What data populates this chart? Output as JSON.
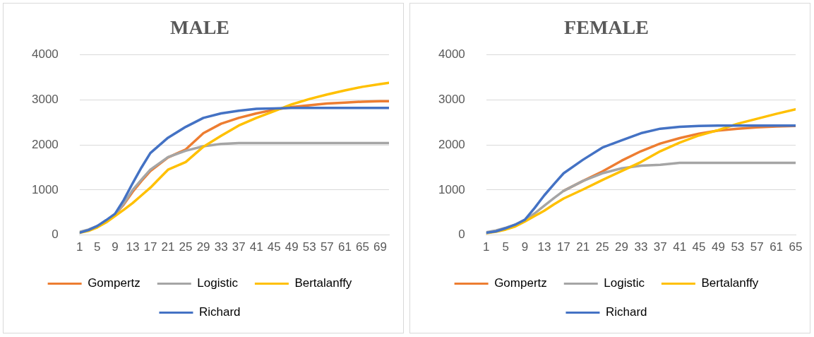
{
  "chart_data": [
    {
      "type": "line",
      "title": "MALE",
      "x": [
        1,
        3,
        5,
        7,
        9,
        11,
        13,
        15,
        17,
        21,
        25,
        29,
        33,
        37,
        41,
        45,
        49,
        53,
        57,
        61,
        65,
        69,
        71
      ],
      "xlim": [
        1,
        71
      ],
      "xticks": [
        1,
        5,
        9,
        13,
        17,
        21,
        25,
        29,
        33,
        37,
        41,
        45,
        49,
        53,
        57,
        61,
        65,
        69
      ],
      "ylim": [
        0,
        4000
      ],
      "yticks": [
        0,
        1000,
        2000,
        3000,
        4000
      ],
      "grid": "y",
      "legend": "bottom",
      "marker": "none",
      "series": [
        {
          "name": "Gompertz",
          "color": "#ed7d31",
          "values": [
            null,
            null,
            null,
            300,
            450,
            680,
            960,
            1200,
            1420,
            1720,
            1900,
            2260,
            2470,
            2600,
            2700,
            2780,
            2840,
            2880,
            2920,
            2940,
            2960,
            2970,
            2970
          ]
        },
        {
          "name": "Logistic",
          "color": "#a5a5a5",
          "values": [
            70,
            120,
            200,
            310,
            450,
            700,
            1000,
            1230,
            1450,
            1730,
            1870,
            1970,
            2020,
            2040,
            2040,
            2040,
            2040,
            2040,
            2040,
            2040,
            2040,
            2040,
            2040
          ]
        },
        {
          "name": "Bertalanffy",
          "color": "#ffc000",
          "values": [
            50,
            90,
            170,
            280,
            420,
            560,
            710,
            880,
            1050,
            1450,
            1620,
            1960,
            2200,
            2430,
            2600,
            2750,
            2900,
            3020,
            3120,
            3210,
            3290,
            3350,
            3380
          ]
        },
        {
          "name": "Richard",
          "color": "#4472c4",
          "values": [
            50,
            110,
            200,
            330,
            470,
            780,
            1150,
            1500,
            1820,
            2160,
            2400,
            2600,
            2700,
            2760,
            2800,
            2810,
            2820,
            2820,
            2820,
            2820,
            2820,
            2820,
            2820
          ]
        }
      ]
    },
    {
      "type": "line",
      "title": "FEMALE",
      "x": [
        1,
        3,
        5,
        7,
        9,
        11,
        13,
        15,
        17,
        21,
        25,
        29,
        33,
        37,
        41,
        45,
        49,
        53,
        57,
        61,
        65
      ],
      "xlim": [
        1,
        65
      ],
      "xticks": [
        1,
        5,
        9,
        13,
        17,
        21,
        25,
        29,
        33,
        37,
        41,
        45,
        49,
        53,
        57,
        61,
        65
      ],
      "ylim": [
        0,
        4000
      ],
      "yticks": [
        0,
        1000,
        2000,
        3000,
        4000
      ],
      "grid": "y",
      "legend": "bottom",
      "marker": "none",
      "series": [
        {
          "name": "Gompertz",
          "color": "#ed7d31",
          "values": [
            null,
            null,
            null,
            null,
            null,
            null,
            null,
            null,
            980,
            1200,
            1410,
            1650,
            1860,
            2030,
            2150,
            2250,
            2320,
            2360,
            2390,
            2410,
            2420
          ]
        },
        {
          "name": "Logistic",
          "color": "#a5a5a5",
          "values": [
            60,
            100,
            160,
            230,
            330,
            480,
            650,
            820,
            980,
            1200,
            1370,
            1480,
            1540,
            1560,
            1600,
            1600,
            1600,
            1600,
            1600,
            1600,
            1600
          ]
        },
        {
          "name": "Bertalanffy",
          "color": "#ffc000",
          "values": [
            40,
            70,
            120,
            190,
            300,
            420,
            540,
            680,
            810,
            1010,
            1220,
            1420,
            1620,
            1860,
            2050,
            2210,
            2330,
            2470,
            2580,
            2690,
            2790
          ]
        },
        {
          "name": "Richard",
          "color": "#4472c4",
          "values": [
            50,
            80,
            150,
            230,
            340,
            600,
            880,
            1130,
            1370,
            1670,
            1940,
            2100,
            2260,
            2360,
            2400,
            2420,
            2430,
            2430,
            2430,
            2430,
            2430
          ]
        }
      ]
    }
  ]
}
